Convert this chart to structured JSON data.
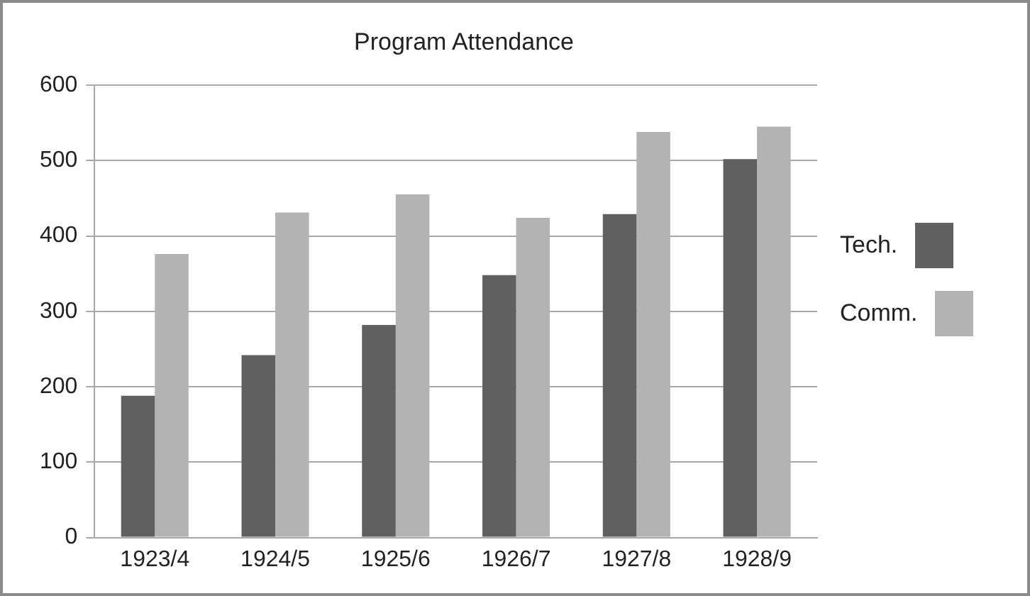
{
  "chart_data": {
    "type": "bar",
    "title": "Program Attendance",
    "categories": [
      "1923/4",
      "1924/5",
      "1925/6",
      "1926/7",
      "1927/8",
      "1928/9"
    ],
    "series": [
      {
        "name": "Tech.",
        "color": "#606060",
        "values": [
          188,
          242,
          282,
          348,
          429,
          502
        ]
      },
      {
        "name": "Comm.",
        "color": "#b3b3b3",
        "values": [
          376,
          431,
          455,
          424,
          538,
          545
        ]
      }
    ],
    "ylim": [
      0,
      600
    ],
    "yticks": [
      0,
      100,
      200,
      300,
      400,
      500,
      600
    ],
    "grid": "y",
    "legend": "right"
  }
}
